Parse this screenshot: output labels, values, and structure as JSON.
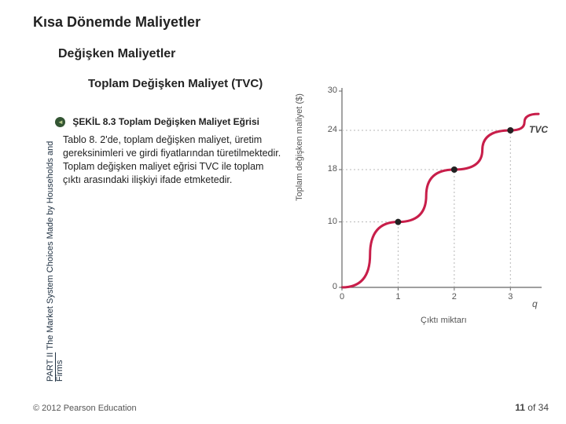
{
  "title_main": "Kısa Dönemde Maliyetler",
  "title_sub": "Değişken Maliyetler",
  "title_subsub": "Toplam Değişken Maliyet (TVC)",
  "figure_label_prefix": "ŞEKİL 8.3",
  "figure_label_rest": "Toplam Değişken Maliyet Eğrisi",
  "figure_body": "Tablo 8. 2'de, toplam değişken maliyet, üretim gereksinimleri ve girdi fiyatlarından türetilmektedir. Toplam değişken maliyet eğrisi TVC ile toplam çıktı arasındaki ilişkiyi ifade etmketedir.",
  "vertical_strip_part": "PART II",
  "vertical_strip_rest": "The Market System Choices Made by Households and Firms",
  "copyright": "© 2012 Pearson Education",
  "page_current": "11",
  "page_separator": "of",
  "page_total": "34",
  "chart": {
    "type": "line",
    "curve_label": "TVC",
    "ylabel": "Toplam değişken maliyet ($)",
    "xlabel": "Çıktı miktarı",
    "q_label": "q",
    "ylim_min": 0,
    "ylim_max": 30,
    "xlim_min": 0,
    "xlim_max": 3.5,
    "yticks": [
      0,
      10,
      18,
      24,
      30
    ],
    "xticks": [
      0,
      1,
      2,
      3
    ],
    "curve_color": "#c81e4a",
    "curve_width": 3,
    "marker_color": "#222222",
    "marker_radius": 4,
    "axis_color": "#666666",
    "grid_color": "#b7b7b7",
    "grid_dash": "2,3",
    "background_color": "#ffffff",
    "points_x": [
      0,
      1,
      2,
      3,
      3.5
    ],
    "points_y": [
      0,
      10,
      18,
      24,
      26.5
    ],
    "marked_points": [
      [
        1,
        10
      ],
      [
        2,
        18
      ],
      [
        3,
        24
      ]
    ]
  }
}
